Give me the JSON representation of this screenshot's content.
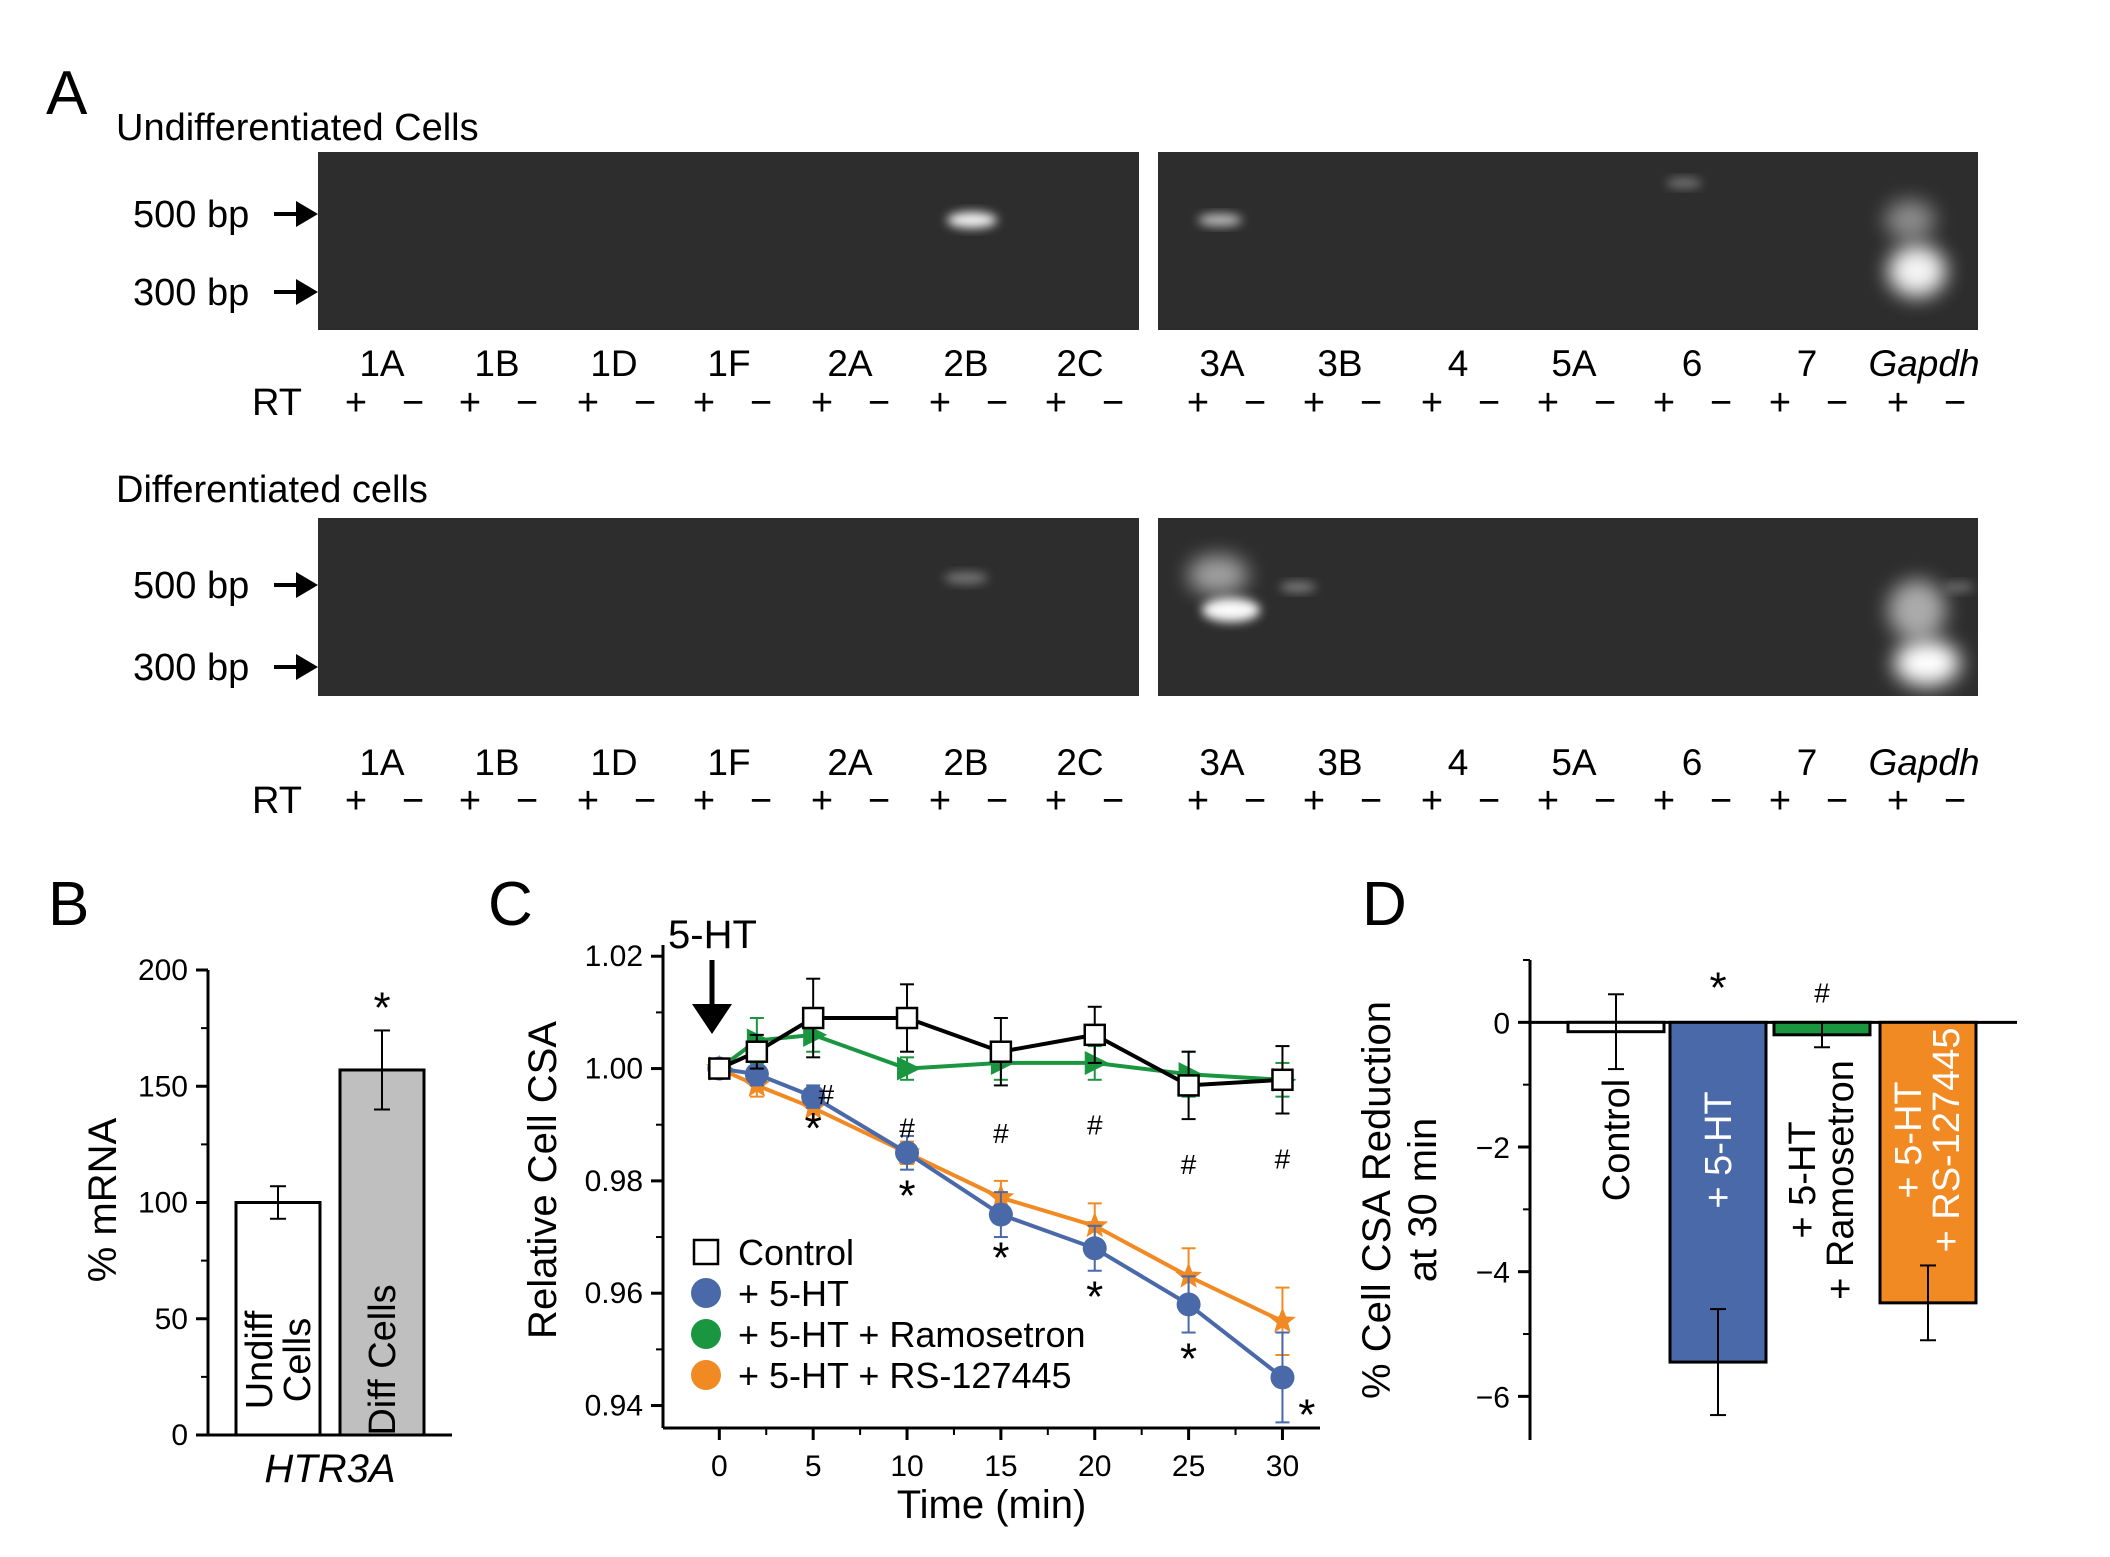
{
  "panels": {
    "A": {
      "letter": "A",
      "gels": [
        {
          "title": "Undifferentiated  Cells",
          "markers": [
            "500 bp",
            "300 bp"
          ],
          "lanes_left": [
            "1A",
            "1B",
            "1D",
            "1F",
            "2A",
            "2B",
            "2C"
          ],
          "lanes_right": [
            "3A",
            "3B",
            "4",
            "5A",
            "6",
            "7",
            "Gapdh"
          ],
          "rt_label": "RT",
          "plus": "+",
          "minus": "−"
        },
        {
          "title": "Differentiated cells",
          "markers": [
            "500 bp",
            "300 bp"
          ],
          "lanes_left": [
            "1A",
            "1B",
            "1D",
            "1F",
            "2A",
            "2B",
            "2C"
          ],
          "lanes_right": [
            "3A",
            "3B",
            "4",
            "5A",
            "6",
            "7",
            "Gapdh"
          ],
          "rt_label": "RT",
          "plus": "+",
          "minus": "−"
        }
      ]
    },
    "B": {
      "letter": "B",
      "chart_data": {
        "type": "bar",
        "categories": [
          "Undiff Cells",
          "Diff Cells"
        ],
        "values": [
          100,
          157
        ],
        "errors": [
          7,
          17
        ],
        "colors": [
          "#ffffff",
          "#bfbfbf"
        ],
        "ylabel": "% mRNA",
        "xlabel": "HTR3A",
        "ylim": [
          0,
          200
        ],
        "yticks": [
          0,
          50,
          100,
          150,
          200
        ],
        "significance": [
          "",
          "*"
        ],
        "bar_labels": [
          [
            "Undiff",
            "Cells"
          ],
          [
            "Diff Cells"
          ]
        ]
      }
    },
    "C": {
      "letter": "C",
      "annotation": "5-HT",
      "chart_data": {
        "type": "line",
        "xlabel": "Time (min)",
        "ylabel": "Relative Cell CSA",
        "xlim": [
          -3,
          32
        ],
        "ylim": [
          0.936,
          1.022
        ],
        "xticks": [
          0,
          5,
          10,
          15,
          20,
          25,
          30
        ],
        "yticks": [
          0.94,
          0.96,
          0.98,
          1.0,
          1.02
        ],
        "ytick_labels": [
          "0.94",
          "0.96",
          "0.98",
          "1.00",
          "1.02"
        ],
        "series": [
          {
            "name": "Control",
            "color": "#000000",
            "marker": "square-open",
            "x": [
              0,
              2,
              5,
              10,
              15,
              20,
              25,
              30
            ],
            "y": [
              1.0,
              1.003,
              1.009,
              1.009,
              1.003,
              1.006,
              0.997,
              0.998
            ],
            "err": [
              0.001,
              0.003,
              0.007,
              0.006,
              0.006,
              0.005,
              0.006,
              0.006
            ]
          },
          {
            "name": "+ 5-HT",
            "color": "#4a69a8",
            "marker": "circle",
            "x": [
              0,
              2,
              5,
              10,
              15,
              20,
              25,
              30
            ],
            "y": [
              1.0,
              0.999,
              0.995,
              0.985,
              0.974,
              0.968,
              0.958,
              0.945
            ],
            "err": [
              0.001,
              0.002,
              0.002,
              0.003,
              0.004,
              0.004,
              0.005,
              0.008
            ]
          },
          {
            "name": "+ 5-HT + Ramosetron",
            "color": "#1a9641",
            "marker": "triangle-right",
            "x": [
              0,
              2,
              5,
              10,
              15,
              20,
              25,
              30
            ],
            "y": [
              1.0,
              1.005,
              1.006,
              1.0,
              1.001,
              1.001,
              0.999,
              0.998
            ],
            "err": [
              0.001,
              0.004,
              0.003,
              0.002,
              0.003,
              0.003,
              0.004,
              0.003
            ]
          },
          {
            "name": "+ 5-HT + RS-127445",
            "color": "#f28a24",
            "marker": "star",
            "x": [
              0,
              2,
              5,
              10,
              15,
              20,
              25,
              30
            ],
            "y": [
              1.0,
              0.997,
              0.993,
              0.985,
              0.977,
              0.972,
              0.963,
              0.955
            ],
            "err": [
              0.001,
              0.002,
              0.002,
              0.002,
              0.003,
              0.004,
              0.005,
              0.006
            ]
          }
        ],
        "stars": [
          {
            "x": 5,
            "y": 0.991
          },
          {
            "x": 10,
            "y": 0.979
          },
          {
            "x": 15,
            "y": 0.968
          },
          {
            "x": 20,
            "y": 0.961
          },
          {
            "x": 25,
            "y": 0.95
          },
          {
            "x": 31.3,
            "y": 0.94
          }
        ],
        "hashes": [
          {
            "x": 5.7,
            "y": 0.9955
          },
          {
            "x": 10,
            "y": 0.9895
          },
          {
            "x": 15,
            "y": 0.9885
          },
          {
            "x": 20,
            "y": 0.99
          },
          {
            "x": 25,
            "y": 0.983
          },
          {
            "x": 30,
            "y": 0.984
          }
        ],
        "star_symbol": "*",
        "hash_symbol": "#"
      }
    },
    "D": {
      "letter": "D",
      "chart_data": {
        "type": "bar",
        "categories": [
          "Control",
          "+ 5-HT",
          "+ 5-HT + Ramosetron",
          "+ 5-HT + RS-127445"
        ],
        "values": [
          -0.15,
          -5.45,
          -0.2,
          -4.5
        ],
        "errors": [
          0.6,
          0.85,
          0.2,
          0.6
        ],
        "colors": [
          "#ffffff",
          "#4a69a8",
          "#1a9641",
          "#f28a24"
        ],
        "ylabel_lines": [
          "% Cell CSA Reduction",
          "at 30 min"
        ],
        "ylim": [
          -6.7,
          1.0
        ],
        "yticks": [
          0,
          -2,
          -4,
          -6
        ],
        "ytick_labels": [
          "0",
          "−2",
          "−4",
          "−6"
        ],
        "significance": [
          "",
          "*",
          "#",
          ""
        ],
        "bar_labels": [
          [
            "Control"
          ],
          [
            "+ 5-HT"
          ],
          [
            "+ 5-HT",
            "+ Ramosetron"
          ],
          [
            "+ 5-HT",
            "+ RS-127445"
          ]
        ]
      }
    }
  }
}
